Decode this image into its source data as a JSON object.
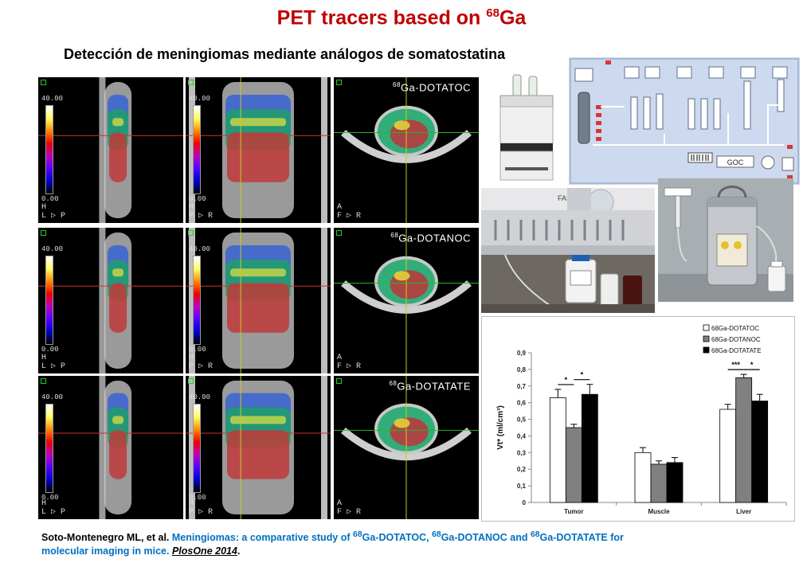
{
  "header": {
    "title_text": "PET tracers based on ",
    "title_sup": "68",
    "title_suffix": "Ga",
    "subtitle": "Detección de meningiomas mediante análogos de somatostatina"
  },
  "pet_rows": [
    {
      "tracer_sup": "68",
      "tracer_name": "Ga-DOTATOC"
    },
    {
      "tracer_sup": "68",
      "tracer_name": "Ga-DOTANOC"
    },
    {
      "tracer_sup": "68",
      "tracer_name": "Ga-DOTATATE"
    }
  ],
  "scale": {
    "top": "40.00",
    "bottom": "0.00"
  },
  "orientation": {
    "sagittal": "H\nL ▷ P",
    "coronal": "H\nP ▷ R",
    "axial": "A\nF ▷ R"
  },
  "synthesizer": {
    "brand_label": "FASTlab",
    "module_label": "GOC"
  },
  "citation": {
    "authors": "Soto-Montenegro ML, et al.",
    "title_prefix": " Meningiomas: a comparative study of ",
    "t1_sup": "68",
    "t1": "Ga-DOTATOC, ",
    "t2_sup": "68",
    "t2": "Ga-DOTANOC and ",
    "t3_sup": "68",
    "t3": "Ga-DOTATATE for",
    "title_line2": "molecular imaging in mice. ",
    "journal": "PlosOne 2014",
    "end": "."
  },
  "colors": {
    "title": "#c00000",
    "citation_blue": "#0070c0"
  },
  "chart_data": {
    "type": "bar",
    "categories": [
      "Tumor",
      "Muscle",
      "Liver"
    ],
    "series": [
      {
        "name": "68Ga-DOTATOC",
        "fill": "#ffffff",
        "values": [
          0.63,
          0.3,
          0.56
        ],
        "errors": [
          0.05,
          0.03,
          0.03
        ]
      },
      {
        "name": "68Ga-DOTANOC",
        "fill": "#808080",
        "values": [
          0.45,
          0.23,
          0.75
        ],
        "errors": [
          0.02,
          0.02,
          0.02
        ]
      },
      {
        "name": "68Ga-DOTATATE",
        "fill": "#000000",
        "values": [
          0.65,
          0.24,
          0.61
        ],
        "errors": [
          0.06,
          0.03,
          0.04
        ]
      }
    ],
    "ylabel": "Vt* (ml/cm³)",
    "ylim": [
      0,
      0.9
    ],
    "yticks": [
      "0",
      "0,1",
      "0,2",
      "0,3",
      "0,4",
      "0,5",
      "0,6",
      "0,7",
      "0,8",
      "0,9"
    ],
    "significance": [
      {
        "category": "Tumor",
        "between": [
          0,
          1
        ],
        "label": "*"
      },
      {
        "category": "Tumor",
        "between": [
          1,
          2
        ],
        "label": "*"
      },
      {
        "category": "Liver",
        "between": [
          0,
          1
        ],
        "label": "***"
      },
      {
        "category": "Liver",
        "between": [
          1,
          2
        ],
        "label": "*"
      }
    ],
    "legend_position": "top-right",
    "grid": false
  }
}
